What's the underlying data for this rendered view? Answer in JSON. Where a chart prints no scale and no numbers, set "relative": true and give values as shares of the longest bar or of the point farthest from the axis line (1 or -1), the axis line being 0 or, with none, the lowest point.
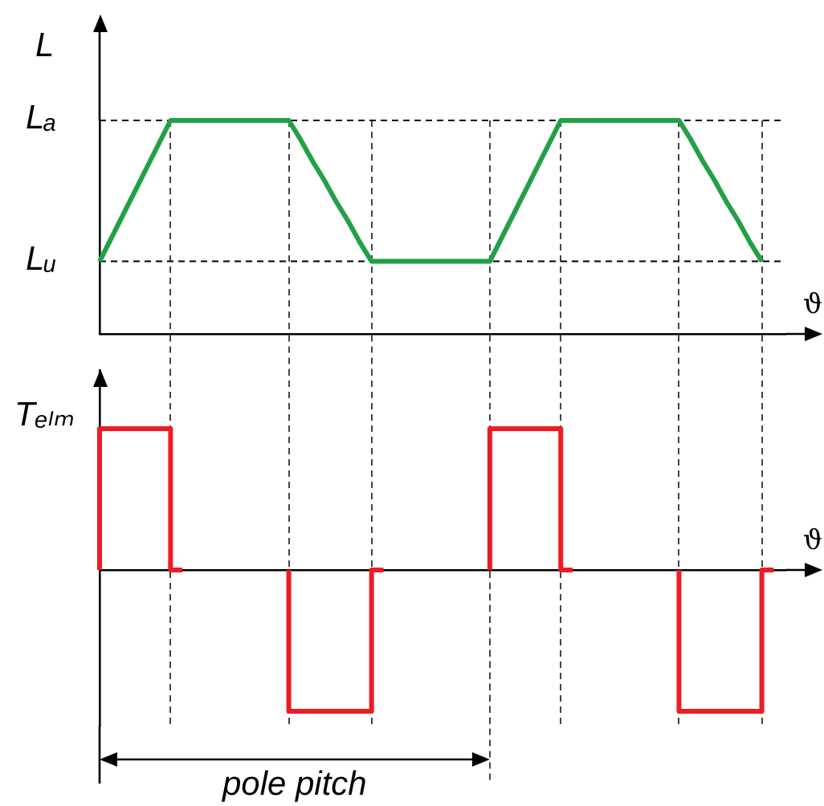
{
  "chart_data": [
    {
      "type": "line",
      "xlabel": "ϑ",
      "ylabel": "L",
      "relative": true,
      "grid": "x",
      "categories": [
        null,
        null,
        null,
        null,
        null,
        null,
        null,
        null,
        null,
        null,
        null,
        null,
        null,
        null,
        null,
        null,
        null,
        null,
        null,
        null,
        null,
        null,
        null,
        null,
        null,
        null,
        null,
        null,
        null,
        null,
        null,
        null,
        null,
        null,
        null,
        null,
        null,
        null,
        null,
        null,
        null,
        null,
        null,
        null,
        null,
        null,
        null,
        null,
        null,
        null,
        null,
        null,
        null,
        null,
        null,
        null,
        null,
        null,
        null
      ],
      "series": [
        {
          "color": "#22a045",
          "values": [
            0.34,
            0.45,
            0.56,
            0.67,
            0.78,
            0.89,
            1,
            1,
            1,
            1,
            1,
            1,
            1,
            1,
            1,
            1,
            1,
            0.91,
            0.81,
            0.72,
            0.62,
            0.53,
            0.43,
            0.34,
            0.34,
            0.34,
            0.34,
            0.34,
            0.34,
            0.34,
            0.34,
            0.34,
            0.34,
            0.34,
            0.45,
            0.56,
            0.67,
            0.78,
            0.89,
            1,
            1,
            1,
            1,
            1,
            1,
            1,
            1,
            1,
            1,
            1,
            0.91,
            0.81,
            0.72,
            0.62,
            0.53,
            0.43,
            0.34,
            null,
            null
          ]
        }
      ],
      "ref_lines": [
        {
          "axis": "y",
          "value": 1,
          "label": "Lₐ",
          "line_style": "dashed",
          "color": "#000000"
        },
        {
          "axis": "y",
          "value": 0.34,
          "label": "Lᵤ",
          "line_style": "dashed",
          "color": "#000000"
        }
      ]
    },
    {
      "type": "step",
      "xlabel": "ϑ",
      "ylabel": "Tₑₗₘ",
      "relative": true,
      "grid": "x",
      "categories": [
        null,
        null,
        null,
        null,
        null,
        null,
        null,
        null,
        null,
        null,
        null,
        null,
        null,
        null,
        null,
        null,
        null,
        null,
        null,
        null,
        null,
        null,
        null,
        null,
        null,
        null,
        null,
        null,
        null,
        null,
        null,
        null,
        null,
        null,
        null,
        null,
        null,
        null,
        null,
        null,
        null,
        null,
        null,
        null,
        null,
        null,
        null,
        null,
        null,
        null,
        null,
        null,
        null,
        null,
        null,
        null,
        null,
        null,
        null
      ],
      "series": [
        {
          "color": "#ed1c24",
          "values": [
            0,
            1,
            1,
            1,
            1,
            1,
            1,
            0,
            null,
            null,
            null,
            null,
            null,
            null,
            null,
            null,
            0,
            -1,
            -1,
            -1,
            -1,
            -1,
            -1,
            -1,
            0,
            null,
            null,
            null,
            null,
            null,
            null,
            null,
            null,
            0,
            1,
            1,
            1,
            1,
            1,
            1,
            0,
            null,
            null,
            null,
            null,
            null,
            null,
            null,
            null,
            0,
            -1,
            -1,
            -1,
            -1,
            -1,
            -1,
            -1,
            0,
            null
          ]
        }
      ],
      "annotations": [
        "pole pitch"
      ]
    }
  ]
}
